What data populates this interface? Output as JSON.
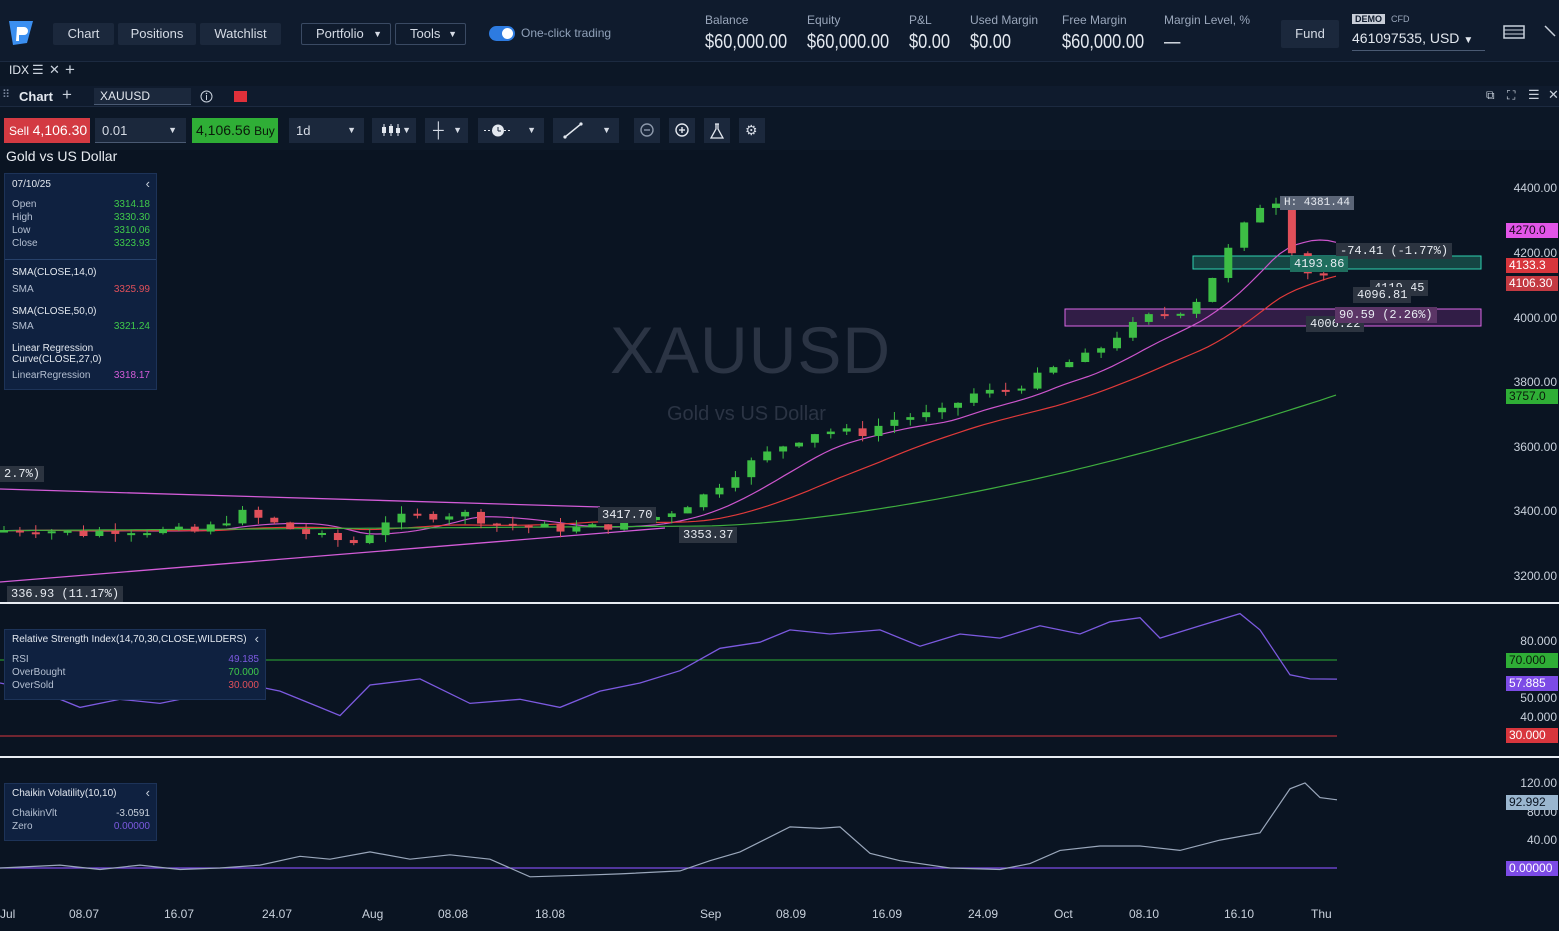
{
  "topbar": {
    "nav": [
      "Chart",
      "Positions",
      "Watchlist"
    ],
    "portfolio": "Portfolio",
    "tools": "Tools",
    "one_click": "One-click trading",
    "metrics": [
      {
        "label": "Balance",
        "value": "$60,000.00"
      },
      {
        "label": "Equity",
        "value": "$60,000.00"
      },
      {
        "label": "P&L",
        "value": "$0.00"
      },
      {
        "label": "Used Margin",
        "value": "$0.00"
      },
      {
        "label": "Free Margin",
        "value": "$60,000.00"
      },
      {
        "label": "Margin Level, %",
        "value": "—"
      }
    ],
    "fund": "Fund",
    "demo": "DEMO",
    "cfd": "CFD",
    "account": "461097535, USD"
  },
  "tabs": {
    "active": "IDX"
  },
  "chartbar": {
    "title": "Chart",
    "symbol": "XAUUSD"
  },
  "toolbar": {
    "sell_label": "Sell",
    "sell_price": "4,106.30",
    "quantity": "0.01",
    "buy_price": "4,106.56",
    "buy_label": "Buy",
    "timeframe": "1d"
  },
  "chart": {
    "heading": "Gold vs US Dollar",
    "watermark_symbol": "XAUUSD",
    "watermark_name": "Gold vs US Dollar",
    "colors": {
      "up": "#3dbd45",
      "down": "#e0505a",
      "sma14": "#cc55cc",
      "sma50": "#e03a3a",
      "linreg": "#3fae3f",
      "rsi": "#7c5ae0",
      "chaikin": "#9aa7bb"
    }
  },
  "main_panel": {
    "date": "07/10/25",
    "rows": [
      {
        "k": "Open",
        "v": "3314.18"
      },
      {
        "k": "High",
        "v": "3330.30"
      },
      {
        "k": "Low",
        "v": "3310.06"
      },
      {
        "k": "Close",
        "v": "3323.93"
      }
    ],
    "sma14_title": "SMA(CLOSE,14,0)",
    "sma14_label": "SMA",
    "sma14_value": "3325.99",
    "sma50_title": "SMA(CLOSE,50,0)",
    "sma50_label": "SMA",
    "sma50_value": "3321.24",
    "lr_title_1": "Linear Regression",
    "lr_title_2": "Curve(CLOSE,27,0)",
    "lr_label": "LinearRegression",
    "lr_value": "3318.17"
  },
  "rsi_panel": {
    "title": "Relative Strength Index(14,70,30,CLOSE,WILDERS)",
    "rows": [
      {
        "k": "RSI",
        "v": "49.185"
      },
      {
        "k": "OverBought",
        "v": "70.000"
      },
      {
        "k": "OverSold",
        "v": "30.000"
      }
    ]
  },
  "chaikin_panel": {
    "title": "Chaikin Volatility(10,10)",
    "rows": [
      {
        "k": "ChaikinVlt",
        "v": "-3.0591"
      },
      {
        "k": "Zero",
        "v": "0.00000"
      }
    ]
  },
  "price_axis": [
    "4400.00",
    "4200.00",
    "4000.00",
    "3800.00",
    "3600.00",
    "3400.00",
    "3200.00"
  ],
  "price_tags": [
    {
      "v": "4270.0",
      "bg": "#e255e8",
      "fg": "#1a0a1f"
    },
    {
      "v": "4133.3",
      "bg": "#d8363d",
      "fg": "#ffffff"
    },
    {
      "v": "4106.30",
      "bg": "#c33a42",
      "fg": "#ffffff"
    },
    {
      "v": "3757.0",
      "bg": "#2fae36",
      "fg": "#0a1a0a"
    }
  ],
  "rsi_axis": [
    "80.000",
    "50.000",
    "40.000"
  ],
  "rsi_tags": [
    {
      "v": "70.000",
      "bg": "#2fae36",
      "fg": "#0a1a0a"
    },
    {
      "v": "57.885",
      "bg": "#7c4be6",
      "fg": "#ffffff"
    },
    {
      "v": "30.000",
      "bg": "#d8363d",
      "fg": "#ffffff"
    }
  ],
  "chaikin_axis": [
    "120.00",
    "80.00",
    "40.00"
  ],
  "chaikin_tags": [
    {
      "v": "92.992",
      "bg": "#9ab6cf",
      "fg": "#0a1422"
    },
    {
      "v": "0.00000",
      "bg": "#7c4be6",
      "fg": "#ffffff"
    }
  ],
  "x_axis": [
    "Jul",
    "08.07",
    "16.07",
    "24.07",
    "Aug",
    "08.08",
    "18.08",
    "Sep",
    "08.09",
    "16.09",
    "24.09",
    "Oct",
    "08.10",
    "16.10",
    "Thu"
  ],
  "annotations": {
    "high": "H: 4381.44",
    "change1": "-74.41  (-1.77%)",
    "level1": "4193.86",
    "level2": "4096.81",
    "level3": "4119.45",
    "change2": "90.59  (2.26%)",
    "level4": "4006.22",
    "p1": "3417.70",
    "p2": "3353.37",
    "left1": "2.7%)",
    "left2": "336.93  (11.17%)"
  }
}
